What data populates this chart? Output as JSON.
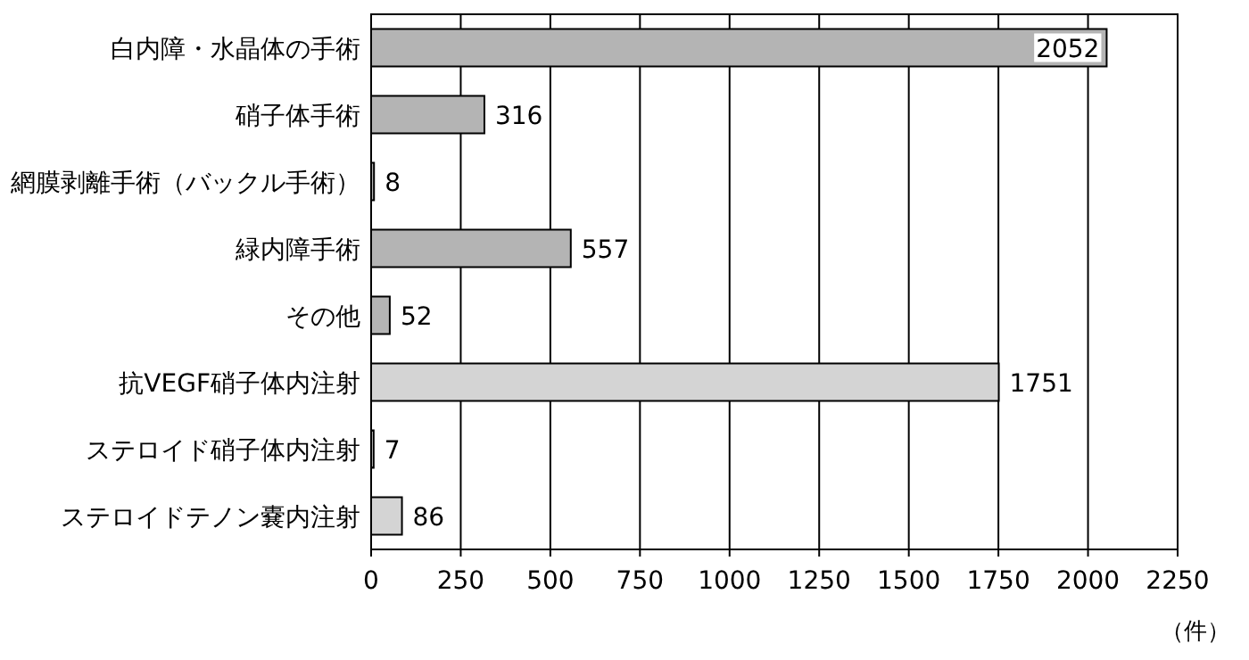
{
  "chart_data": {
    "type": "bar",
    "orientation": "horizontal",
    "categories": [
      "白内障・水晶体の手術",
      "硝子体手術",
      "網膜剥離手術（バックル手術）",
      "緑内障手術",
      "その他",
      "抗VEGF硝子体内注射",
      "ステロイド硝子体内注射",
      "ステロイドテノン嚢内注射"
    ],
    "values": [
      2052,
      316,
      8,
      557,
      52,
      1751,
      7,
      86
    ],
    "colors": [
      "#b4b4b4",
      "#b4b4b4",
      "#b4b4b4",
      "#b4b4b4",
      "#b4b4b4",
      "#d4d4d4",
      "#d4d4d4",
      "#d4d4d4"
    ],
    "data_labels": true,
    "xlim": [
      0,
      2250
    ],
    "xticks": [
      0,
      250,
      500,
      750,
      1000,
      1250,
      1500,
      1750,
      2000,
      2250
    ],
    "grid": "x",
    "xlabel": "（件）"
  }
}
